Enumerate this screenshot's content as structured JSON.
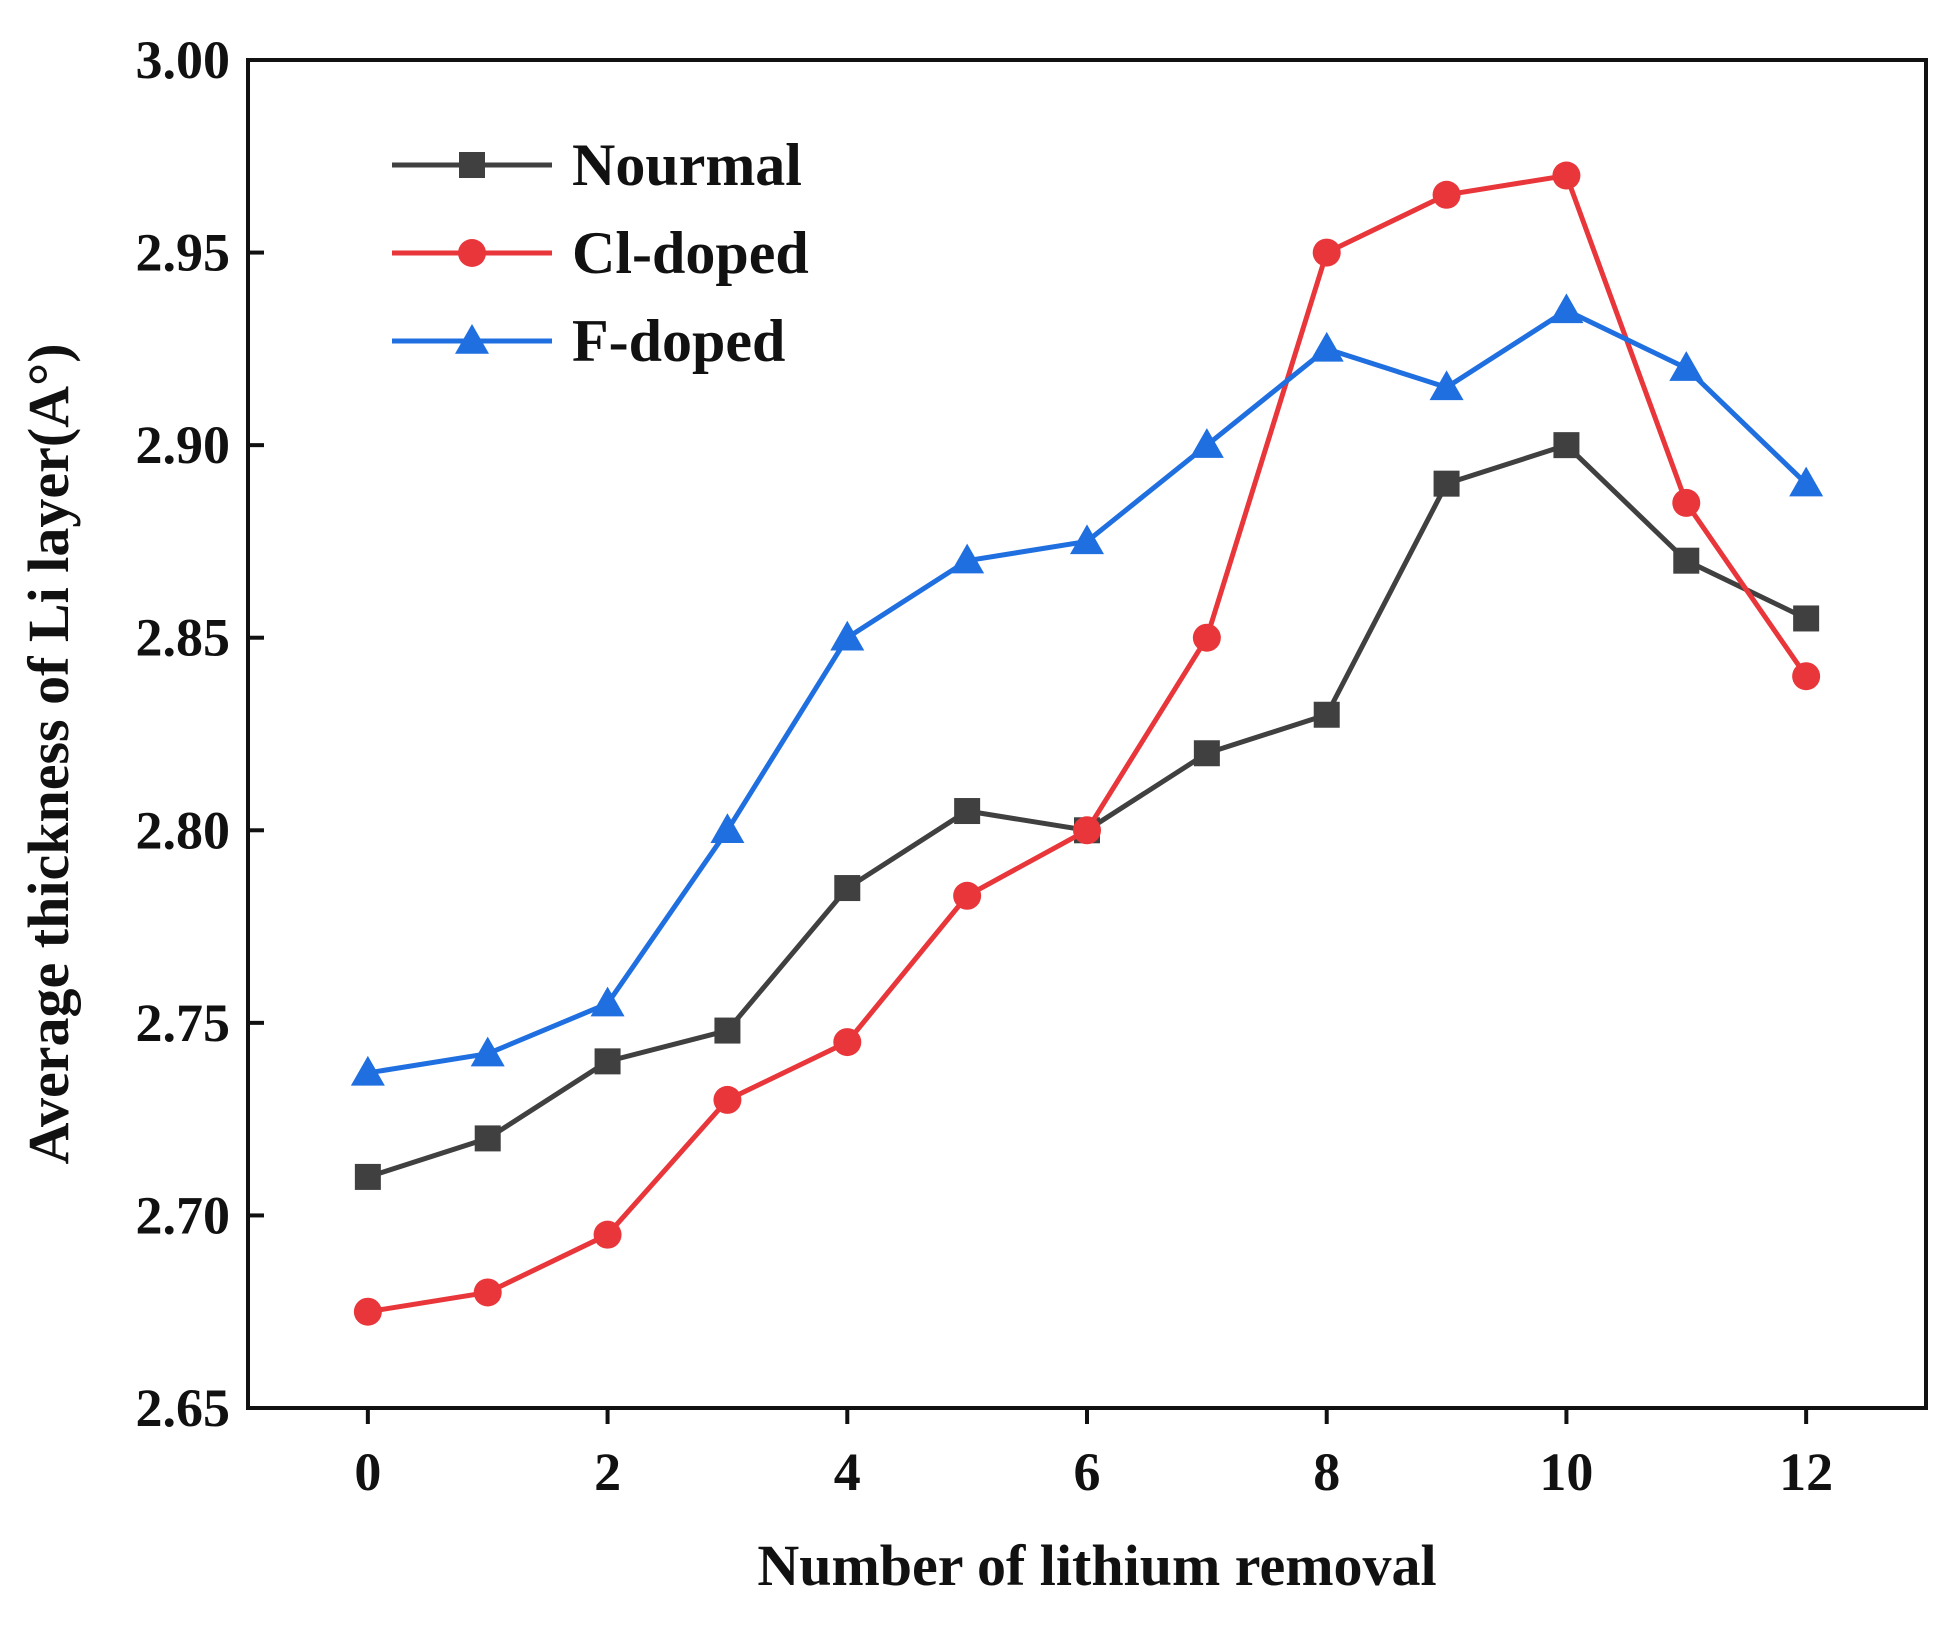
{
  "chart_data": {
    "type": "line",
    "title": "",
    "xlabel": "Number of lithium removal",
    "ylabel": "Average thickness of  Li layer(A°)",
    "xlim": [
      -1,
      13
    ],
    "ylim": [
      2.65,
      3.0
    ],
    "xticks": [
      0,
      2,
      4,
      6,
      8,
      10,
      12
    ],
    "xtick_labels": [
      "0",
      "2",
      "4",
      "6",
      "8",
      "10",
      "12"
    ],
    "yticks": [
      2.65,
      2.7,
      2.75,
      2.8,
      2.85,
      2.9,
      2.95,
      3.0
    ],
    "ytick_labels": [
      "2.65",
      "2.70",
      "2.75",
      "2.80",
      "2.85",
      "2.90",
      "2.95",
      "3.00"
    ],
    "grid": false,
    "legend_position": "top-left",
    "x": [
      0,
      1,
      2,
      3,
      4,
      5,
      6,
      7,
      8,
      9,
      10,
      11,
      12
    ],
    "series": [
      {
        "name": "Nourmal",
        "color": "#404040",
        "marker": "square",
        "values": [
          2.71,
          2.72,
          2.74,
          2.748,
          2.785,
          2.805,
          2.8,
          2.82,
          2.83,
          2.89,
          2.9,
          2.87,
          2.855
        ]
      },
      {
        "name": "Cl-doped",
        "color": "#e8363a",
        "marker": "circle",
        "values": [
          2.675,
          2.68,
          2.695,
          2.73,
          2.745,
          2.783,
          2.8,
          2.85,
          2.95,
          2.965,
          2.97,
          2.885,
          2.84
        ]
      },
      {
        "name": "F-doped",
        "color": "#1f6fe0",
        "marker": "triangle",
        "values": [
          2.737,
          2.742,
          2.755,
          2.8,
          2.85,
          2.87,
          2.875,
          2.9,
          2.925,
          2.915,
          2.935,
          2.92,
          2.89
        ]
      }
    ]
  }
}
